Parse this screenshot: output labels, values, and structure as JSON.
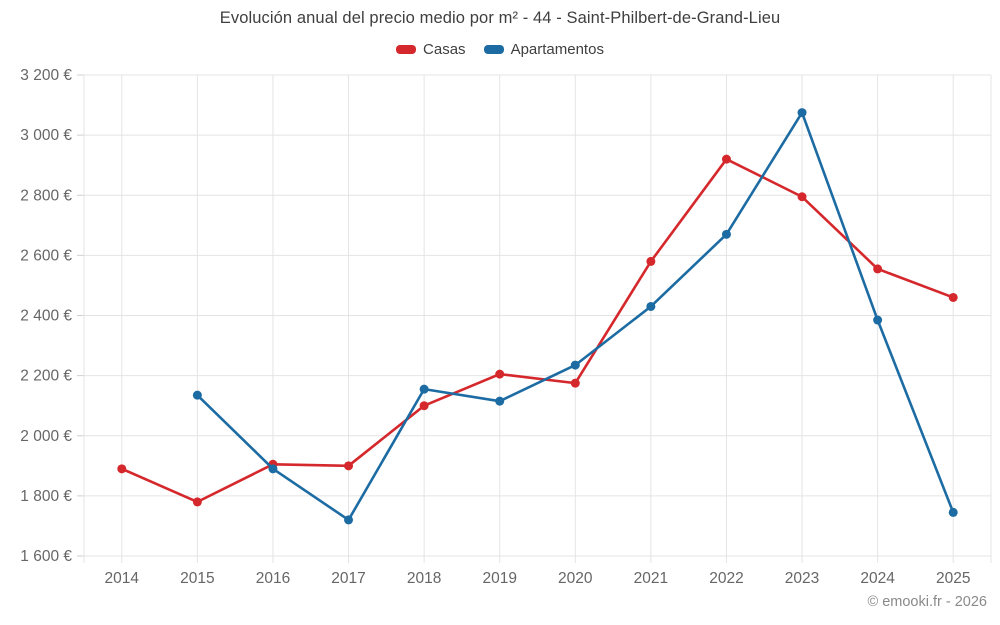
{
  "title": "Evolución anual del precio medio por m² - 44 - Saint-Philbert-de-Grand-Lieu",
  "footer": "© emooki.fr - 2026",
  "colors": {
    "casas": "#d5282c",
    "apartamentos": "#1c6ca3",
    "grid": "#e4e4e4",
    "tick": "#cfcfcf",
    "axis_text": "#666666",
    "title_text": "#3f3f3f",
    "footer_text": "#8a8a8a"
  },
  "chart_data": {
    "type": "line",
    "title": "Evolución anual del precio medio por m² - 44 - Saint-Philbert-de-Grand-Lieu",
    "categories": [
      "2014",
      "2015",
      "2016",
      "2017",
      "2018",
      "2019",
      "2020",
      "2021",
      "2022",
      "2023",
      "2024",
      "2025"
    ],
    "series": [
      {
        "name": "Casas",
        "color": "#d5282c",
        "values": [
          1890,
          1780,
          1905,
          1900,
          2100,
          2205,
          2175,
          2580,
          2920,
          2795,
          2555,
          2460
        ]
      },
      {
        "name": "Apartamentos",
        "color": "#1c6ca3",
        "values": [
          null,
          2135,
          1890,
          1720,
          2155,
          2115,
          2235,
          2430,
          2670,
          3075,
          2385,
          1745
        ]
      }
    ],
    "xlabel": "",
    "ylabel": "",
    "ylim": [
      1600,
      3200
    ],
    "ytick_step": 200,
    "ytick_labels": [
      "1 600 €",
      "1 800 €",
      "2 000 €",
      "2 200 €",
      "2 400 €",
      "2 600 €",
      "2 800 €",
      "3 000 €",
      "3 200 €"
    ],
    "grid": true,
    "legend_position": "top"
  }
}
